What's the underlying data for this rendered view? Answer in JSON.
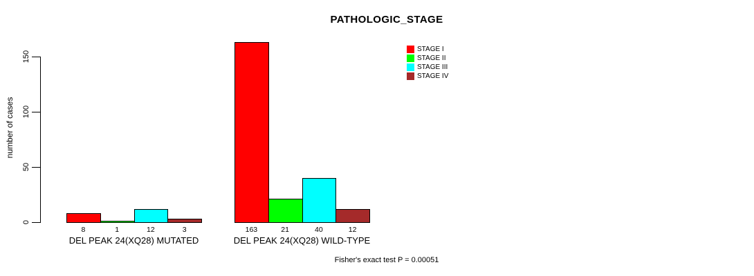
{
  "chart_data": {
    "type": "bar",
    "title": "PATHOLOGIC_STAGE",
    "xlabel": "",
    "ylabel": "number of cases",
    "ylim": [
      0,
      150
    ],
    "yticks": [
      0,
      50,
      100,
      150
    ],
    "grid": false,
    "legend_position": "top-right",
    "categories": [
      "DEL PEAK 24(XQ28) MUTATED",
      "DEL PEAK 24(XQ28) WILD-TYPE"
    ],
    "series": [
      {
        "name": "STAGE I",
        "color": "#ff0000",
        "values": [
          8,
          163
        ]
      },
      {
        "name": "STAGE II",
        "color": "#00ff00",
        "values": [
          1,
          21
        ]
      },
      {
        "name": "STAGE III",
        "color": "#00ffff",
        "values": [
          12,
          40
        ]
      },
      {
        "name": "STAGE IV",
        "color": "#a52a2a",
        "values": [
          3,
          12
        ]
      }
    ],
    "bar_value_labels": [
      [
        8,
        1,
        12,
        3
      ],
      [
        163,
        21,
        40,
        12
      ]
    ],
    "annotation": "Fisher's exact test P = 0.00051",
    "axis_color": "#000000",
    "background_color": "#ffffff"
  }
}
